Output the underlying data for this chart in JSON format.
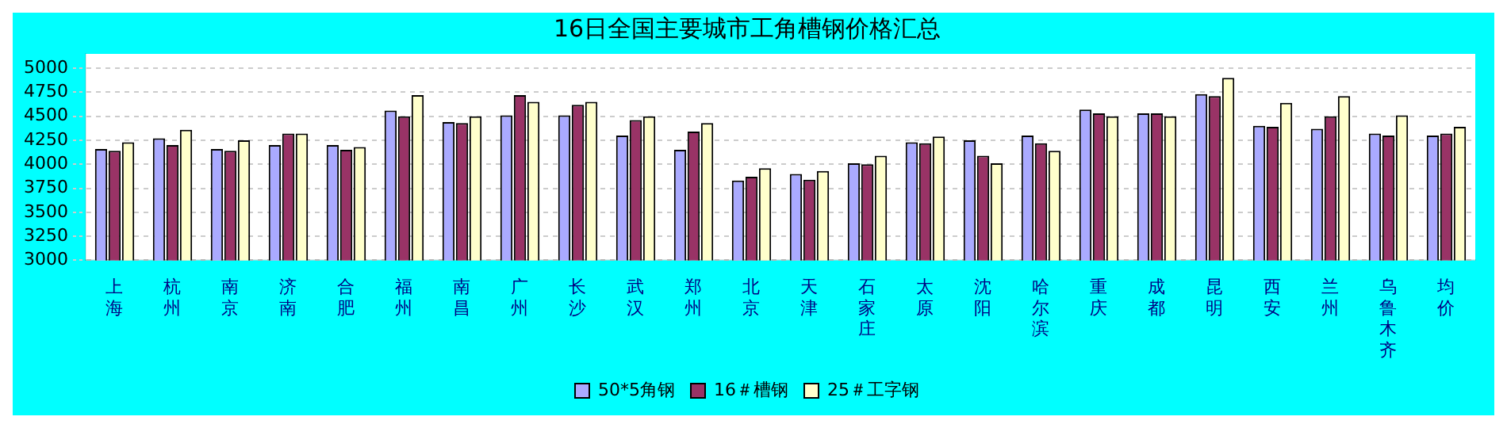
{
  "chart_data": {
    "type": "bar",
    "title": "16日全国主要城市工角槽钢价格汇总",
    "categories": [
      "上海",
      "杭州",
      "南京",
      "济南",
      "合肥",
      "福州",
      "南昌",
      "广州",
      "长沙",
      "武汉",
      "郑州",
      "北京",
      "天津",
      "石家庄",
      "太原",
      "沈阳",
      "哈尔滨",
      "重庆",
      "成都",
      "昆明",
      "西安",
      "兰州",
      "乌鲁木齐",
      "均价"
    ],
    "series": [
      {
        "name": "50*5角钢",
        "color": "#aaaaff",
        "values": [
          4160,
          4270,
          4160,
          4200,
          4200,
          4560,
          4440,
          4510,
          4510,
          4300,
          4150,
          3830,
          3900,
          4010,
          4230,
          4250,
          4300,
          4570,
          4530,
          4730,
          4400,
          4370,
          4320,
          4300
        ]
      },
      {
        "name": "16＃槽钢",
        "color": "#993366",
        "values": [
          4140,
          4200,
          4140,
          4320,
          4150,
          4500,
          4430,
          4720,
          4620,
          4460,
          4340,
          3870,
          3840,
          4000,
          4220,
          4090,
          4220,
          4530,
          4530,
          4710,
          4390,
          4500,
          4300,
          4320
        ]
      },
      {
        "name": "25＃工字钢",
        "color": "#ffffcc",
        "values": [
          4230,
          4360,
          4250,
          4320,
          4180,
          4720,
          4500,
          4650,
          4650,
          4500,
          4430,
          3960,
          3930,
          4090,
          4290,
          4010,
          4140,
          4500,
          4500,
          4900,
          4640,
          4710,
          4510,
          4390
        ]
      }
    ],
    "ylim": [
      3000,
      5150
    ],
    "yticks": [
      3000,
      3250,
      3500,
      3750,
      4000,
      4250,
      4500,
      4750,
      5000
    ],
    "grid": "y",
    "legend": "bottom"
  }
}
